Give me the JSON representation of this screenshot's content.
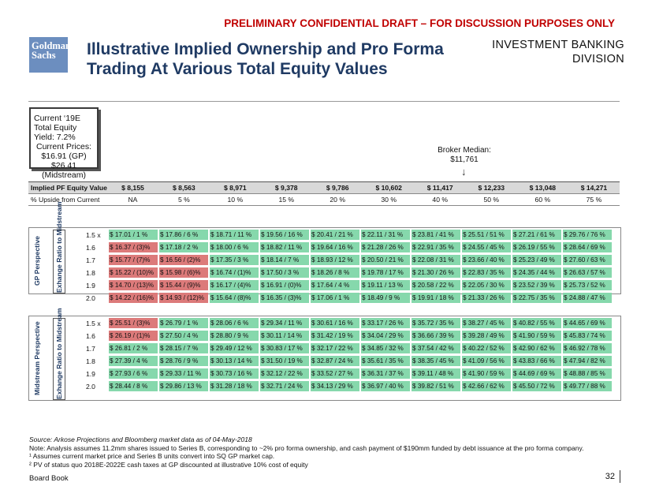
{
  "banner": "PRELIMINARY CONFIDENTIAL DRAFT – FOR DISCUSSION PURPOSES ONLY",
  "logo": {
    "line1": "Goldman",
    "line2": "Sachs"
  },
  "title": "Illustrative Implied Ownership and Pro Forma Trading At Various Total Equity Values",
  "division": {
    "line1": "INVESTMENT BANKING",
    "line2": "DIVISION"
  },
  "yield_box": {
    "line1": "Current ‘19E Total Equity Yield: 7.2%",
    "line2": "Current Prices:",
    "line3": "$16.91 (GP)",
    "line4": "$26.41",
    "line5": "(Midstream)"
  },
  "broker": {
    "label": "Broker Median:",
    "value": "$11,761"
  },
  "header": {
    "equity_label": "Implied PF Equity Value",
    "equity_values": [
      "$ 8,155",
      "$ 8,563",
      "$ 8,971",
      "$ 9,378",
      "$ 9,786",
      "$ 10,602",
      "$ 11,417",
      "$ 12,233",
      "$ 13,048",
      "$ 14,271"
    ],
    "upside_label": "% Upside from Current",
    "upside_values": [
      "NA",
      "5 %",
      "10 %",
      "15 %",
      "20 %",
      "30 %",
      "40 %",
      "50 %",
      "60 %",
      "75 %"
    ]
  },
  "gp_section": {
    "perspective": "GP Perspective",
    "ratio_label": "Exhange Ratio to Midstream",
    "rows": [
      {
        "ratio": "1.5 x",
        "cells": [
          "$ 17.01 / 1 %",
          "$ 17.86 / 6 %",
          "$ 18.71 / 11 %",
          "$ 19.56 / 16 %",
          "$ 20.41 / 21 %",
          "$ 22.11 / 31 %",
          "$ 23.81 / 41 %",
          "$ 25.51 / 51 %",
          "$ 27.21 / 61 %",
          "$ 29.76 / 76 %"
        ],
        "red": []
      },
      {
        "ratio": "1.6",
        "cells": [
          "$ 16.37 / (3)%",
          "$ 17.18 / 2 %",
          "$ 18.00 / 6 %",
          "$ 18.82 / 11 %",
          "$ 19.64 / 16 %",
          "$ 21.28 / 26 %",
          "$ 22.91 / 35 %",
          "$ 24.55 / 45 %",
          "$ 26.19 / 55 %",
          "$ 28.64 / 69 %"
        ],
        "red": [
          0
        ]
      },
      {
        "ratio": "1.7",
        "cells": [
          "$ 15.77 / (7)%",
          "$ 16.56 / (2)%",
          "$ 17.35 / 3 %",
          "$ 18.14 / 7 %",
          "$ 18.93 / 12 %",
          "$ 20.50 / 21 %",
          "$ 22.08 / 31 %",
          "$ 23.66 / 40 %",
          "$ 25.23 / 49 %",
          "$ 27.60 / 63 %"
        ],
        "red": [
          0,
          1
        ]
      },
      {
        "ratio": "1.8",
        "cells": [
          "$ 15.22 / (10)%",
          "$ 15.98 / (6)%",
          "$ 16.74 / (1)%",
          "$ 17.50 / 3 %",
          "$ 18.26 / 8 %",
          "$ 19.78 / 17 %",
          "$ 21.30 / 26 %",
          "$ 22.83 / 35 %",
          "$ 24.35 / 44 %",
          "$ 26.63 / 57 %"
        ],
        "red": [
          0,
          1
        ]
      },
      {
        "ratio": "1.9",
        "cells": [
          "$ 14.70 / (13)%",
          "$ 15.44 / (9)%",
          "$ 16.17 / (4)%",
          "$ 16.91 / (0)%",
          "$ 17.64 / 4 %",
          "$ 19.11 / 13 %",
          "$ 20.58 / 22 %",
          "$ 22.05 / 30 %",
          "$ 23.52 / 39 %",
          "$ 25.73 / 52 %"
        ],
        "red": [
          0,
          1
        ]
      },
      {
        "ratio": "2.0",
        "cells": [
          "$ 14.22 / (16)%",
          "$ 14.93 / (12)%",
          "$ 15.64 / (8)%",
          "$ 16.35 / (3)%",
          "$ 17.06 / 1 %",
          "$ 18.49 / 9 %",
          "$ 19.91 / 18 %",
          "$ 21.33 / 26 %",
          "$ 22.75 / 35 %",
          "$ 24.88 / 47 %"
        ],
        "red": [
          0,
          1
        ]
      }
    ]
  },
  "ms_section": {
    "perspective": "Midstream Perspective",
    "ratio_label": "Exhange Ratio to Midstream",
    "rows": [
      {
        "ratio": "1.5 x",
        "cells": [
          "$ 25.51 / (3)%",
          "$ 26.79 / 1 %",
          "$ 28.06 / 6 %",
          "$ 29.34 / 11 %",
          "$ 30.61 / 16 %",
          "$ 33.17 / 26 %",
          "$ 35.72 / 35 %",
          "$ 38.27 / 45 %",
          "$ 40.82 / 55 %",
          "$ 44.65 / 69 %"
        ],
        "red": [
          0
        ]
      },
      {
        "ratio": "1.6",
        "cells": [
          "$ 26.19 / (1)%",
          "$ 27.50 / 4 %",
          "$ 28.80 / 9 %",
          "$ 30.11 / 14 %",
          "$ 31.42 / 19 %",
          "$ 34.04 / 29 %",
          "$ 36.66 / 39 %",
          "$ 39.28 / 49 %",
          "$ 41.90 / 59 %",
          "$ 45.83 / 74 %"
        ],
        "red": [
          0
        ]
      },
      {
        "ratio": "1.7",
        "cells": [
          "$ 26.81 / 2 %",
          "$ 28.15 / 7 %",
          "$ 29.49 / 12 %",
          "$ 30.83 / 17 %",
          "$ 32.17 / 22 %",
          "$ 34.85 / 32 %",
          "$ 37.54 / 42 %",
          "$ 40.22 / 52 %",
          "$ 42.90 / 62 %",
          "$ 46.92 / 78 %"
        ],
        "red": []
      },
      {
        "ratio": "1.8",
        "cells": [
          "$ 27.39 / 4 %",
          "$ 28.76 / 9 %",
          "$ 30.13 / 14 %",
          "$ 31.50 / 19 %",
          "$ 32.87 / 24 %",
          "$ 35.61 / 35 %",
          "$ 38.35 / 45 %",
          "$ 41.09 / 56 %",
          "$ 43.83 / 66 %",
          "$ 47.94 / 82 %"
        ],
        "red": []
      },
      {
        "ratio": "1.9",
        "cells": [
          "$ 27.93 / 6 %",
          "$ 29.33 / 11 %",
          "$ 30.73 / 16 %",
          "$ 32.12 / 22 %",
          "$ 33.52 / 27 %",
          "$ 36.31 / 37 %",
          "$ 39.11 / 48 %",
          "$ 41.90 / 59 %",
          "$ 44.69 / 69 %",
          "$ 48.88 / 85 %"
        ],
        "red": []
      },
      {
        "ratio": "2.0",
        "cells": [
          "$ 28.44 / 8 %",
          "$ 29.86 / 13 %",
          "$ 31.28 / 18 %",
          "$ 32.71 / 24 %",
          "$ 34.13 / 29 %",
          "$ 36.97 / 40 %",
          "$ 39.82 / 51 %",
          "$ 42.66 / 62 %",
          "$ 45.50 / 72 %",
          "$ 49.77 / 88 %"
        ],
        "red": []
      }
    ]
  },
  "footnotes": {
    "source": "Source: Arkose Projections and Bloomberg market data as of 04-May-2018",
    "note": "Note: Analysis assumes 11.2mm shares issued to Series B, corresponding to ~2% pro forma ownership, and cash payment of $190mm funded by debt issuance at the pro forma company.",
    "fn1": "¹ Assumes current market price and Series B units convert into SQ GP market cap.",
    "fn2": "² PV of status quo 2018E-2022E cash taxes at GP discounted at illustrative 10% cost of equity"
  },
  "footer": {
    "label": "Board Book",
    "page": "32"
  },
  "colors": {
    "green": "#86d8ac",
    "red": "#dc7a7a",
    "title": "#1f3a63",
    "banner": "#c00000"
  }
}
